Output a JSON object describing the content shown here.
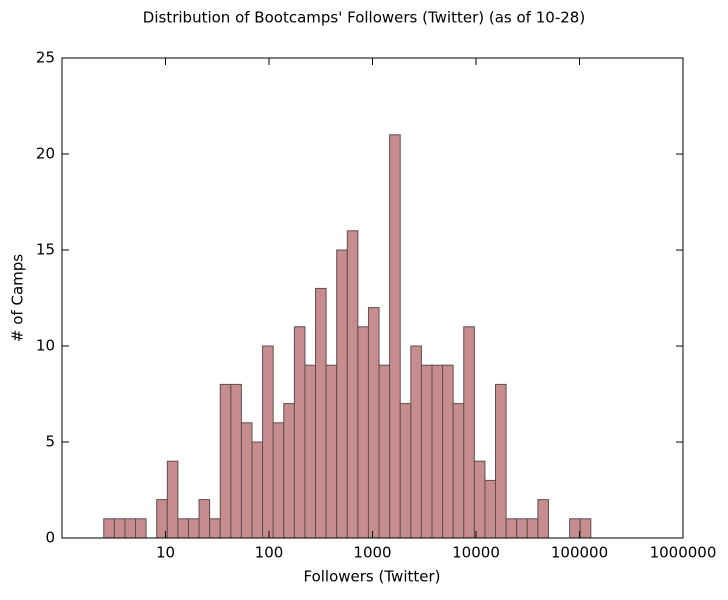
{
  "chart_data": {
    "type": "histogram",
    "title": "Distribution of Bootcamps' Followers (Twitter) (as of 10-28)",
    "x_label": "Followers (Twitter)",
    "y_label": "# of Camps",
    "bins": [
      1.249,
      1.581,
      2.001,
      2.532,
      3.204,
      4.056,
      5.133,
      6.497,
      8.222,
      10.41,
      13.17,
      16.67,
      21.1,
      26.7,
      33.79,
      42.77,
      54.13,
      68.5,
      86.7,
      109.7,
      138.9,
      175.8,
      222.5,
      281.5,
      356.3,
      451.0,
      570.7,
      722.3,
      914.1,
      1157,
      1464,
      1853,
      2346,
      2969,
      3757,
      4755,
      6018,
      7616,
      9638,
      12200,
      15440,
      19540,
      24730,
      31300,
      39610,
      50130,
      63450,
      80300,
      101600,
      128600
    ],
    "values": [
      0,
      0,
      0,
      1,
      1,
      1,
      1,
      0,
      2,
      4,
      1,
      1,
      2,
      1,
      8,
      8,
      6,
      5,
      10,
      6,
      7,
      11,
      9,
      13,
      9,
      15,
      16,
      11,
      12,
      9,
      21,
      7,
      10,
      9,
      9,
      9,
      7,
      11,
      4,
      3,
      8,
      1,
      1,
      1,
      2,
      0,
      0,
      1,
      1
    ],
    "color": "#c78c8e",
    "edge_color": "#5e4e4f",
    "x_log": true,
    "xlim": [
      1,
      1000000
    ],
    "xticks": [
      10,
      100,
      1000,
      10000,
      100000,
      1000000
    ],
    "ylim": [
      0,
      25
    ],
    "yticks": [
      0,
      5,
      10,
      15,
      20,
      25
    ]
  }
}
